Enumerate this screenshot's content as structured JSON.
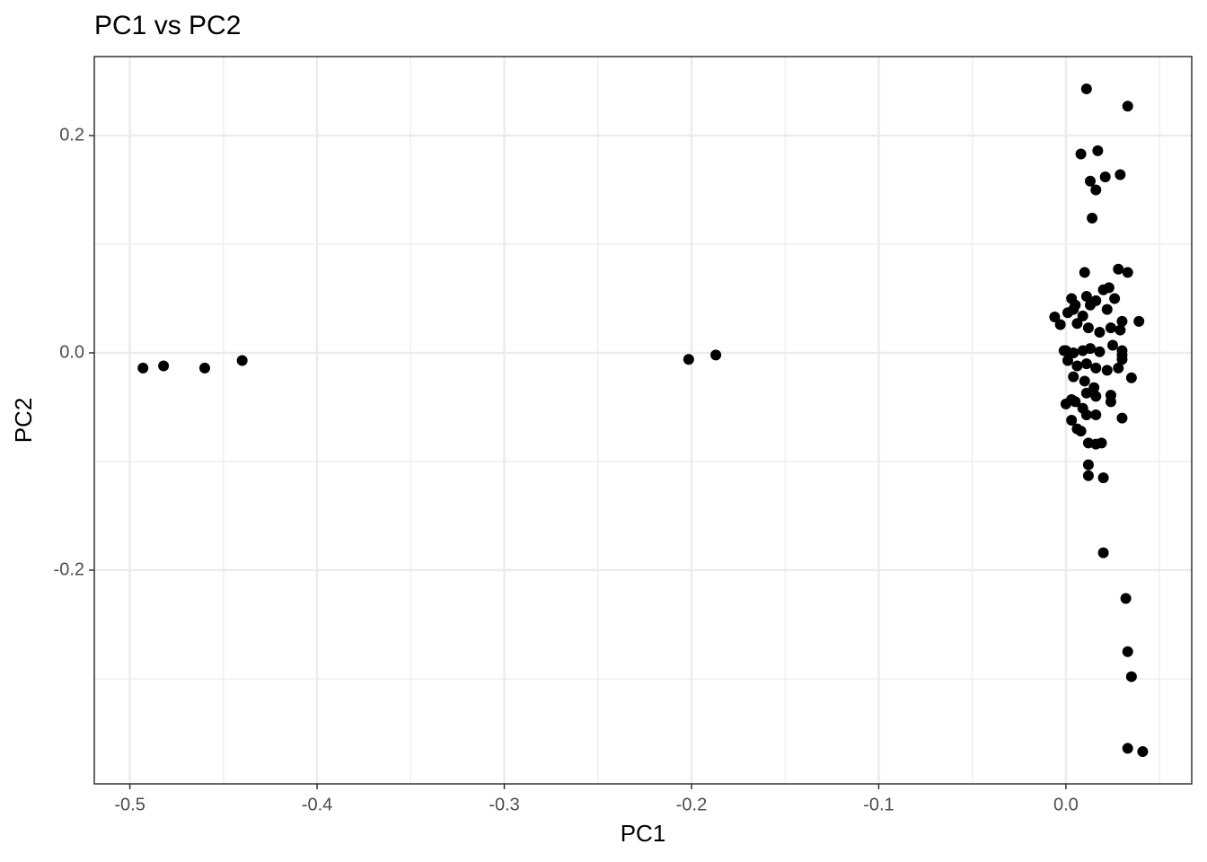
{
  "chart_data": {
    "type": "scatter",
    "title": "PC1 vs PC2",
    "x_label": "PC1",
    "y_label": "PC2",
    "color": "#000000",
    "grid": true,
    "xlim": [
      -0.519,
      0.0672
    ],
    "ylim": [
      -0.3967,
      0.2727
    ],
    "xticks": [
      -0.5,
      -0.4,
      -0.3,
      -0.2,
      -0.1,
      {
        "value": 0,
        "label": "0.0"
      }
    ],
    "yticks": [
      -0.2,
      {
        "value": 0,
        "label": "0.0"
      },
      0.2
    ],
    "x_minor_ticks": [
      -0.45,
      -0.35,
      -0.25,
      -0.15,
      -0.05,
      0.05
    ],
    "y_minor_ticks": [
      -0.3,
      -0.1,
      0.1
    ],
    "x": [
      -0.493,
      -0.482,
      -0.46,
      -0.44,
      -0.2015,
      -0.187,
      0.011,
      0.033,
      0.008,
      0.017,
      0.013,
      0.016,
      0.021,
      0.029,
      0.014,
      0.01,
      0.028,
      0.033,
      0.039,
      0.035,
      0.03,
      0.012,
      0.016,
      0.019,
      0.012,
      0.012,
      0.02,
      0.02,
      0.032,
      0.033,
      0.035,
      0.033,
      0.041,
      -0.006,
      -0.003,
      0.0,
      0.001,
      0.003,
      0.004,
      0.005,
      0.009,
      0.011,
      0.013,
      0.016,
      0.02,
      0.023,
      0.026,
      0.022,
      0.006,
      0.012,
      0.018,
      0.024,
      0.029,
      0.03,
      -0.001,
      0.004,
      0.009,
      0.013,
      0.018,
      0.025,
      0.03,
      0.001,
      0.006,
      0.011,
      0.016,
      0.022,
      0.028,
      0.004,
      0.01,
      0.015,
      0.011,
      0.016,
      0.024,
      0.024,
      0.0,
      0.003,
      0.005,
      0.009,
      0.011,
      0.016,
      0.003,
      0.006,
      0.008,
      0.03,
      0.03
    ],
    "y": [
      -0.014,
      -0.012,
      -0.014,
      -0.007,
      -0.006,
      -0.002,
      0.243,
      0.227,
      0.183,
      0.186,
      0.158,
      0.15,
      0.162,
      0.164,
      0.124,
      0.074,
      0.077,
      0.074,
      0.029,
      -0.023,
      -0.06,
      -0.083,
      -0.084,
      -0.083,
      -0.103,
      -0.113,
      -0.115,
      -0.184,
      -0.226,
      -0.275,
      -0.298,
      -0.364,
      -0.367,
      0.033,
      0.026,
      0.002,
      0.037,
      0.05,
      0.04,
      0.044,
      0.034,
      0.052,
      0.044,
      0.048,
      0.058,
      0.06,
      0.05,
      0.04,
      0.027,
      0.023,
      0.019,
      0.023,
      0.021,
      0.029,
      0.002,
      0.0,
      0.002,
      0.004,
      0.001,
      0.007,
      0.002,
      -0.007,
      -0.012,
      -0.01,
      -0.014,
      -0.016,
      -0.014,
      -0.022,
      -0.026,
      -0.032,
      -0.037,
      -0.04,
      -0.039,
      -0.045,
      -0.047,
      -0.043,
      -0.045,
      -0.051,
      -0.057,
      -0.057,
      -0.062,
      -0.07,
      -0.072,
      -0.006,
      -0.002
    ]
  }
}
